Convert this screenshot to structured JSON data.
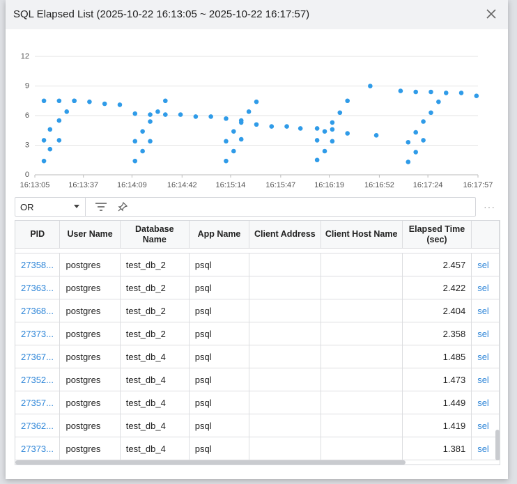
{
  "header": {
    "title": "SQL Elapsed List (2025-10-22 16:13:05 ~ 2025-10-22 16:17:57)"
  },
  "chart_data": {
    "type": "scatter",
    "color": "#2f9be8",
    "grid": true,
    "xlim": [
      58385,
      58677
    ],
    "xticks": [
      {
        "value": 58385,
        "label": "16:13:05"
      },
      {
        "value": 58417,
        "label": "16:13:37"
      },
      {
        "value": 58449,
        "label": "16:14:09"
      },
      {
        "value": 58482,
        "label": "16:14:42"
      },
      {
        "value": 58514,
        "label": "16:15:14"
      },
      {
        "value": 58547,
        "label": "16:15:47"
      },
      {
        "value": 58579,
        "label": "16:16:19"
      },
      {
        "value": 58612,
        "label": "16:16:52"
      },
      {
        "value": 58644,
        "label": "16:17:24"
      },
      {
        "value": 58677,
        "label": "16:17:57"
      }
    ],
    "ylim": [
      0,
      12
    ],
    "yticks": [
      0,
      3,
      6,
      9,
      12
    ],
    "x": [
      58391,
      58391,
      58391,
      58395,
      58395,
      58401,
      58401,
      58401,
      58406,
      58411,
      58411,
      58421,
      58431,
      58441,
      58451,
      58451,
      58451,
      58456,
      58456,
      58461,
      58461,
      58461,
      58466,
      58471,
      58471,
      58481,
      58491,
      58501,
      58511,
      58511,
      58511,
      58516,
      58516,
      58521,
      58521,
      58521,
      58526,
      58531,
      58531,
      58541,
      58551,
      58560,
      58571,
      58571,
      58571,
      58576,
      58576,
      58581,
      58581,
      58581,
      58586,
      58591,
      58591,
      58606,
      58610,
      58626,
      58631,
      58631,
      58636,
      58636,
      58636,
      58641,
      58641,
      58646,
      58646,
      58651,
      58656,
      58666,
      58676
    ],
    "values": [
      7.5,
      3.5,
      1.4,
      2.6,
      4.6,
      5.5,
      3.5,
      7.5,
      6.4,
      7.5,
      7.5,
      7.4,
      7.2,
      7.1,
      6.2,
      3.4,
      1.4,
      4.4,
      2.4,
      6.1,
      5.4,
      3.4,
      6.4,
      7.5,
      6.1,
      6.1,
      5.9,
      5.9,
      5.7,
      3.4,
      1.4,
      4.4,
      2.4,
      5.5,
      5.3,
      3.6,
      6.4,
      7.4,
      5.1,
      4.9,
      4.9,
      4.7,
      4.7,
      3.5,
      1.5,
      4.4,
      2.4,
      5.3,
      4.6,
      3.4,
      6.3,
      7.5,
      4.2,
      9.0,
      4.0,
      8.5,
      3.3,
      1.3,
      8.4,
      4.3,
      2.3,
      5.4,
      3.5,
      6.3,
      8.4,
      7.4,
      8.3,
      8.3,
      8.0
    ]
  },
  "toolbar": {
    "filter": "OR",
    "more": "···"
  },
  "table": {
    "columns": [
      "PID",
      "User Name",
      "Database Name",
      "App Name",
      "Client Address",
      "Client Host Name",
      "Elapsed Time (sec)"
    ],
    "rows": [
      {
        "pid": "27358...",
        "user": "postgres",
        "database": "test_db_2",
        "app": "psql",
        "elapsed": 2.457,
        "link": "sel"
      },
      {
        "pid": "27363...",
        "user": "postgres",
        "database": "test_db_2",
        "app": "psql",
        "elapsed": 2.422,
        "link": "sel"
      },
      {
        "pid": "27368...",
        "user": "postgres",
        "database": "test_db_2",
        "app": "psql",
        "elapsed": 2.404,
        "link": "sel"
      },
      {
        "pid": "27373...",
        "user": "postgres",
        "database": "test_db_2",
        "app": "psql",
        "elapsed": 2.358,
        "link": "sel"
      },
      {
        "pid": "27367...",
        "user": "postgres",
        "database": "test_db_4",
        "app": "psql",
        "elapsed": 1.485,
        "link": "sel"
      },
      {
        "pid": "27352...",
        "user": "postgres",
        "database": "test_db_4",
        "app": "psql",
        "elapsed": 1.473,
        "link": "sel"
      },
      {
        "pid": "27357...",
        "user": "postgres",
        "database": "test_db_4",
        "app": "psql",
        "elapsed": 1.449,
        "link": "sel"
      },
      {
        "pid": "27362...",
        "user": "postgres",
        "database": "test_db_4",
        "app": "psql",
        "elapsed": 1.419,
        "link": "sel"
      },
      {
        "pid": "27373...",
        "user": "postgres",
        "database": "test_db_4",
        "app": "psql",
        "elapsed": 1.381,
        "link": "sel"
      }
    ]
  }
}
